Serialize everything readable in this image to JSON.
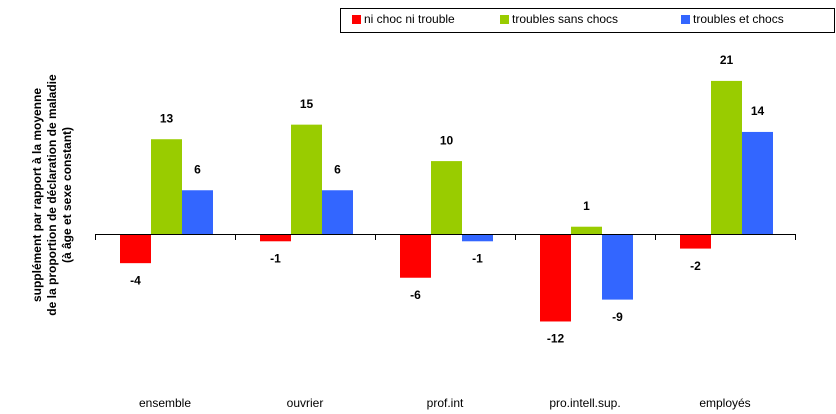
{
  "chart_data": {
    "type": "bar",
    "ylabel": [
      "supplément par rapport à la moyenne",
      "de la proportion de déclaration de maladie",
      "(à âge et sexe constant)"
    ],
    "categories": [
      "ensemble",
      "ouvrier",
      "prof.int",
      "pro.intell.sup.",
      "employés"
    ],
    "series": [
      {
        "name": "ni choc ni trouble",
        "color": "#ff0000",
        "values": [
          -4,
          -1,
          -6,
          -12,
          -2
        ]
      },
      {
        "name": "troubles sans chocs",
        "color": "#99cc00",
        "values": [
          13,
          15,
          10,
          1,
          21
        ]
      },
      {
        "name": "troubles et chocs",
        "color": "#3366ff",
        "values": [
          6,
          6,
          -1,
          -9,
          14
        ]
      }
    ],
    "legend": "top-right"
  }
}
